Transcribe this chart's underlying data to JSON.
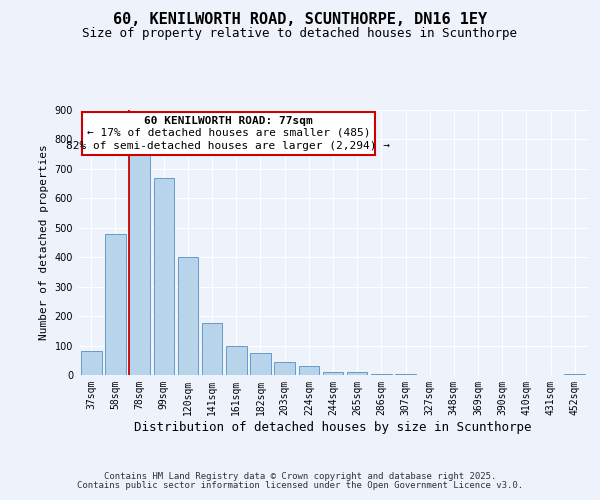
{
  "title": "60, KENILWORTH ROAD, SCUNTHORPE, DN16 1EY",
  "subtitle": "Size of property relative to detached houses in Scunthorpe",
  "xlabel": "Distribution of detached houses by size in Scunthorpe",
  "ylabel": "Number of detached properties",
  "bar_labels": [
    "37sqm",
    "58sqm",
    "78sqm",
    "99sqm",
    "120sqm",
    "141sqm",
    "161sqm",
    "182sqm",
    "203sqm",
    "224sqm",
    "244sqm",
    "265sqm",
    "286sqm",
    "307sqm",
    "327sqm",
    "348sqm",
    "369sqm",
    "390sqm",
    "410sqm",
    "431sqm",
    "452sqm"
  ],
  "bar_values": [
    80,
    480,
    750,
    670,
    400,
    175,
    100,
    75,
    45,
    32,
    10,
    10,
    5,
    2,
    0,
    0,
    0,
    0,
    0,
    0,
    5
  ],
  "bar_color": "#b8d4ea",
  "bar_edge_color": "#6699cc",
  "vline_color": "#cc0000",
  "annotation_title": "60 KENILWORTH ROAD: 77sqm",
  "annotation_line1": "← 17% of detached houses are smaller (485)",
  "annotation_line2": "82% of semi-detached houses are larger (2,294) →",
  "annotation_box_color": "#cc0000",
  "ylim": [
    0,
    900
  ],
  "yticks": [
    0,
    100,
    200,
    300,
    400,
    500,
    600,
    700,
    800,
    900
  ],
  "footer1": "Contains HM Land Registry data © Crown copyright and database right 2025.",
  "footer2": "Contains public sector information licensed under the Open Government Licence v3.0.",
  "bg_color": "#eef2fb",
  "plot_bg_color": "#eef2fb",
  "grid_color": "#ffffff",
  "title_fontsize": 11,
  "subtitle_fontsize": 9,
  "xlabel_fontsize": 9,
  "ylabel_fontsize": 8,
  "tick_fontsize": 7,
  "annotation_fontsize": 8,
  "footer_fontsize": 6.5
}
